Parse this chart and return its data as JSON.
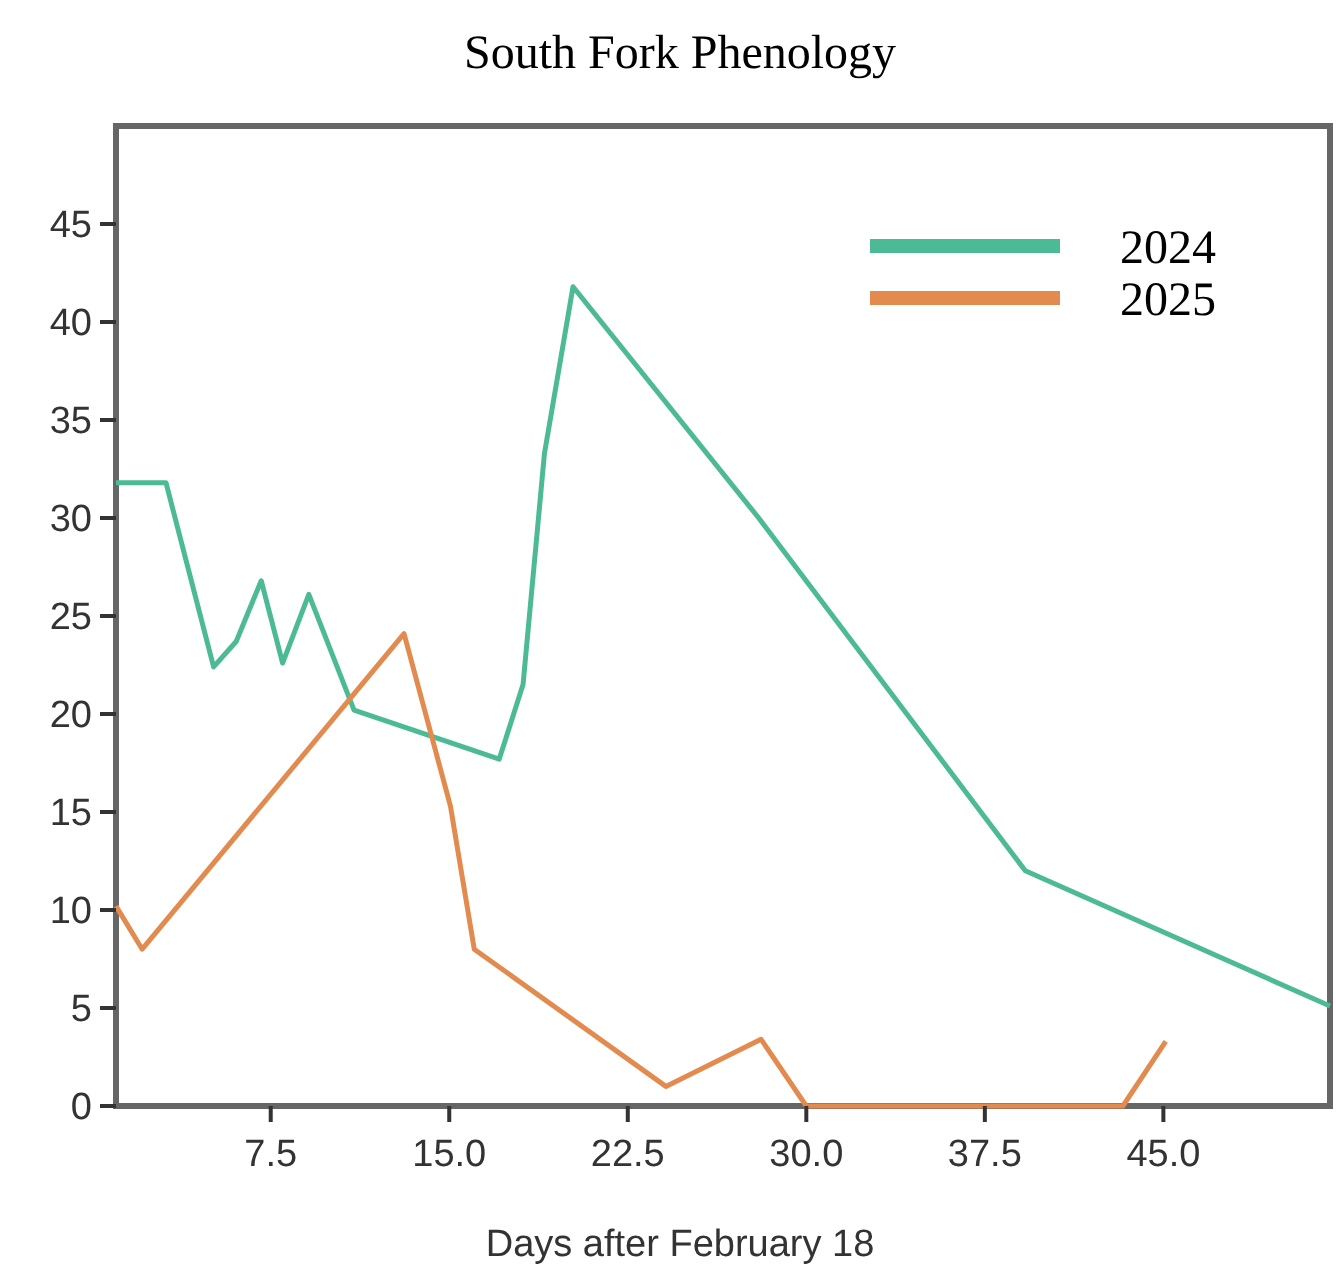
{
  "chart_data": {
    "type": "line",
    "title": "South Fork Phenology",
    "xlabel": "Days after February 18",
    "xlim": [
      1,
      52
    ],
    "xticks": [
      {
        "value": 7.5,
        "label": "7.5"
      },
      {
        "value": 15,
        "label": "15.0"
      },
      {
        "value": 22.5,
        "label": "22.5"
      },
      {
        "value": 30,
        "label": "30.0"
      },
      {
        "value": 37.5,
        "label": "37.5"
      },
      {
        "value": 45,
        "label": "45.0"
      }
    ],
    "ylim": [
      0,
      50
    ],
    "yticks": [
      0,
      5,
      10,
      15,
      20,
      25,
      30,
      35,
      40,
      45
    ],
    "legend": "top right",
    "grid": false,
    "series": [
      {
        "name": "2024",
        "color": "#4dba96",
        "x": [
          1,
          3.1,
          5.1,
          6.05,
          7.1,
          8,
          9.1,
          11,
          17.1,
          18.1,
          19,
          20.2,
          28,
          39.2,
          52
        ],
        "values": [
          31.8,
          31.8,
          22.4,
          23.7,
          26.8,
          22.6,
          26.1,
          20.2,
          17.7,
          21.5,
          33.3,
          41.8,
          30,
          12,
          5.1
        ]
      },
      {
        "name": "2025",
        "color": "#e38a4f",
        "x": [
          1,
          2.1,
          13.1,
          15.05,
          16.05,
          24.1,
          28.1,
          30,
          43.3,
          45.1
        ],
        "values": [
          10.2,
          8,
          24.1,
          15.3,
          8,
          1,
          3.4,
          0,
          0,
          3.3
        ]
      }
    ]
  }
}
